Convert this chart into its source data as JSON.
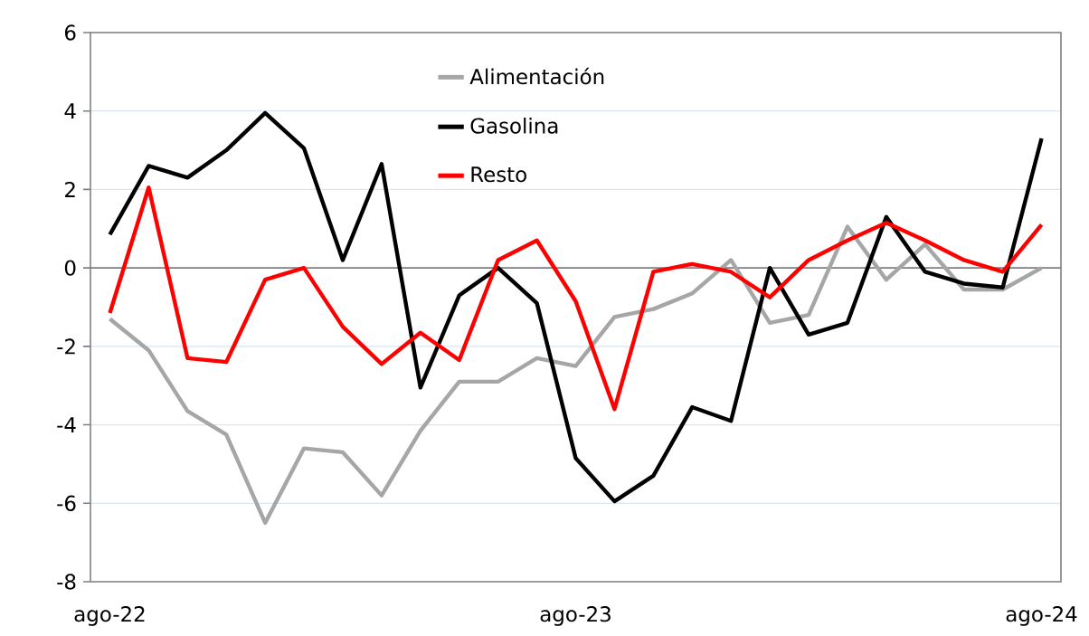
{
  "chart_data": {
    "type": "line",
    "categories": [
      "ago-22",
      null,
      null,
      null,
      null,
      null,
      null,
      null,
      null,
      null,
      null,
      null,
      "ago-23",
      null,
      null,
      null,
      null,
      null,
      null,
      null,
      null,
      null,
      null,
      null,
      "ago-24"
    ],
    "series": [
      {
        "name": "Alimentación",
        "color": "#a6a6a6",
        "values": [
          -1.3,
          -2.1,
          -3.65,
          -4.25,
          -6.5,
          -4.6,
          -4.7,
          -5.8,
          -4.15,
          -2.9,
          -2.9,
          -2.3,
          -2.5,
          -1.25,
          -1.05,
          -0.65,
          0.2,
          -1.4,
          -1.2,
          1.05,
          -0.3,
          0.6,
          -0.55,
          -0.55,
          0.0
        ]
      },
      {
        "name": "Gasolina",
        "color": "#000000",
        "values": [
          0.85,
          2.6,
          2.3,
          3.0,
          3.95,
          3.05,
          0.2,
          2.65,
          -3.05,
          -0.7,
          0.0,
          -0.9,
          -4.85,
          -5.95,
          -5.3,
          -3.55,
          -3.9,
          0.0,
          -1.7,
          -1.4,
          1.3,
          -0.1,
          -0.4,
          -0.5,
          3.3
        ]
      },
      {
        "name": "Resto",
        "color": "#ff0000",
        "values": [
          -1.15,
          2.05,
          -2.3,
          -2.4,
          -0.3,
          0.0,
          -1.5,
          -2.45,
          -1.65,
          -2.35,
          0.2,
          0.7,
          -0.85,
          -3.6,
          -0.1,
          0.1,
          -0.1,
          -0.75,
          0.2,
          0.7,
          1.15,
          0.7,
          0.2,
          -0.1,
          1.1
        ]
      }
    ],
    "ylim": [
      -8,
      6
    ],
    "yticks": [
      -8,
      -6,
      -4,
      -2,
      0,
      2,
      4,
      6
    ],
    "ref_lines": [
      {
        "axis": "y",
        "value": 0,
        "color": "#808080"
      }
    ],
    "grid": "y",
    "legend": "top",
    "marker": "none",
    "line_style": "solid"
  }
}
